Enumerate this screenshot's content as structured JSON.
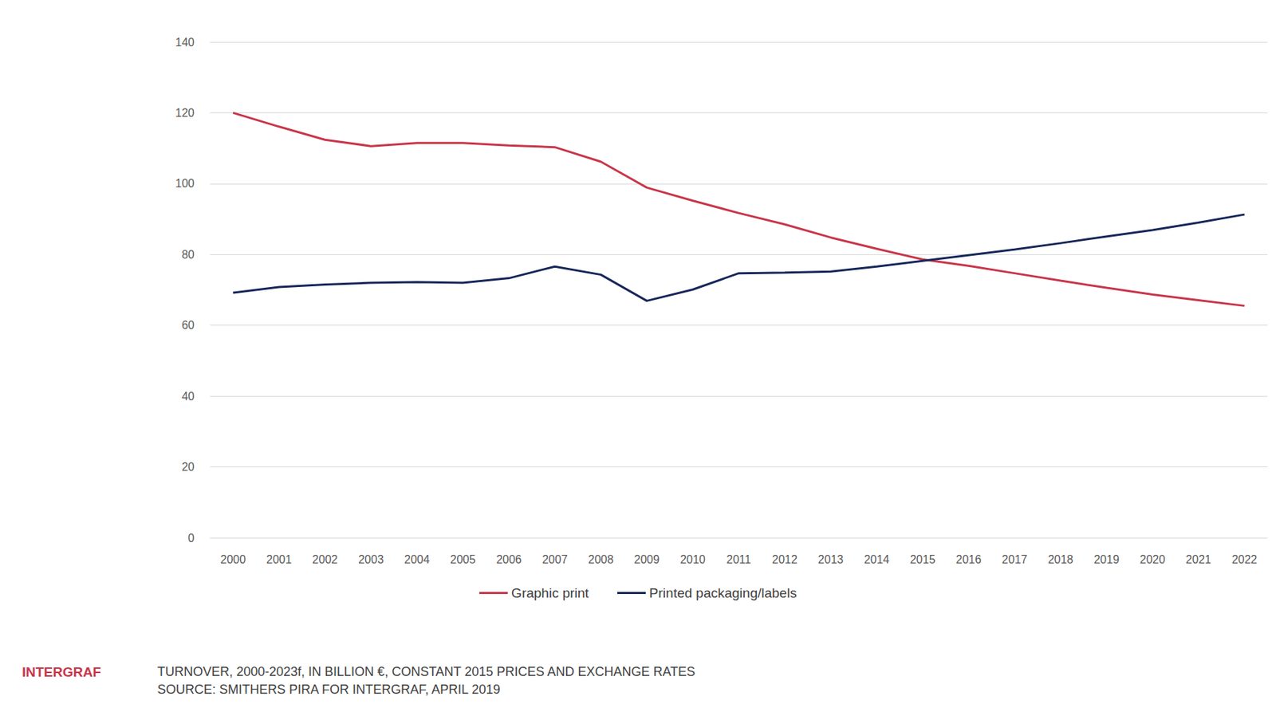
{
  "chart_data": {
    "type": "line",
    "categories": [
      "2000",
      "2001",
      "2002",
      "2003",
      "2004",
      "2005",
      "2006",
      "2007",
      "2008",
      "2009",
      "2010",
      "2011",
      "2012",
      "2013",
      "2014",
      "2015",
      "2016",
      "2017",
      "2018",
      "2019",
      "2020",
      "2021",
      "2022"
    ],
    "series": [
      {
        "name": "Graphic print",
        "color": "#c8364a",
        "values": [
          120.0,
          116.1,
          112.4,
          110.6,
          111.5,
          111.5,
          110.8,
          110.3,
          106.2,
          98.9,
          95.2,
          91.7,
          88.5,
          84.8,
          81.6,
          78.6,
          76.8,
          74.7,
          72.6,
          70.6,
          68.7,
          67.1,
          65.5
        ]
      },
      {
        "name": "Printed packaging/labels",
        "color": "#17275a",
        "values": [
          69.2,
          70.8,
          71.5,
          72.0,
          72.2,
          72.0,
          73.3,
          76.6,
          74.3,
          66.9,
          70.1,
          74.7,
          74.9,
          75.2,
          76.6,
          78.2,
          79.8,
          81.4,
          83.2,
          85.1,
          86.9,
          89.0,
          91.3
        ]
      }
    ],
    "ylim": [
      0,
      140
    ],
    "yticks": [
      0,
      20,
      40,
      60,
      80,
      100,
      120,
      140
    ],
    "grid": true,
    "legend": "bottom",
    "annotations": [
      "INTERGRAF",
      "TURNOVER, 2000-2023f, IN BILLION €, CONSTANT 2015 PRICES AND EXCHANGE RATES",
      "SOURCE: SMITHERS PIRA FOR INTERGRAF, APRIL 2019"
    ]
  }
}
